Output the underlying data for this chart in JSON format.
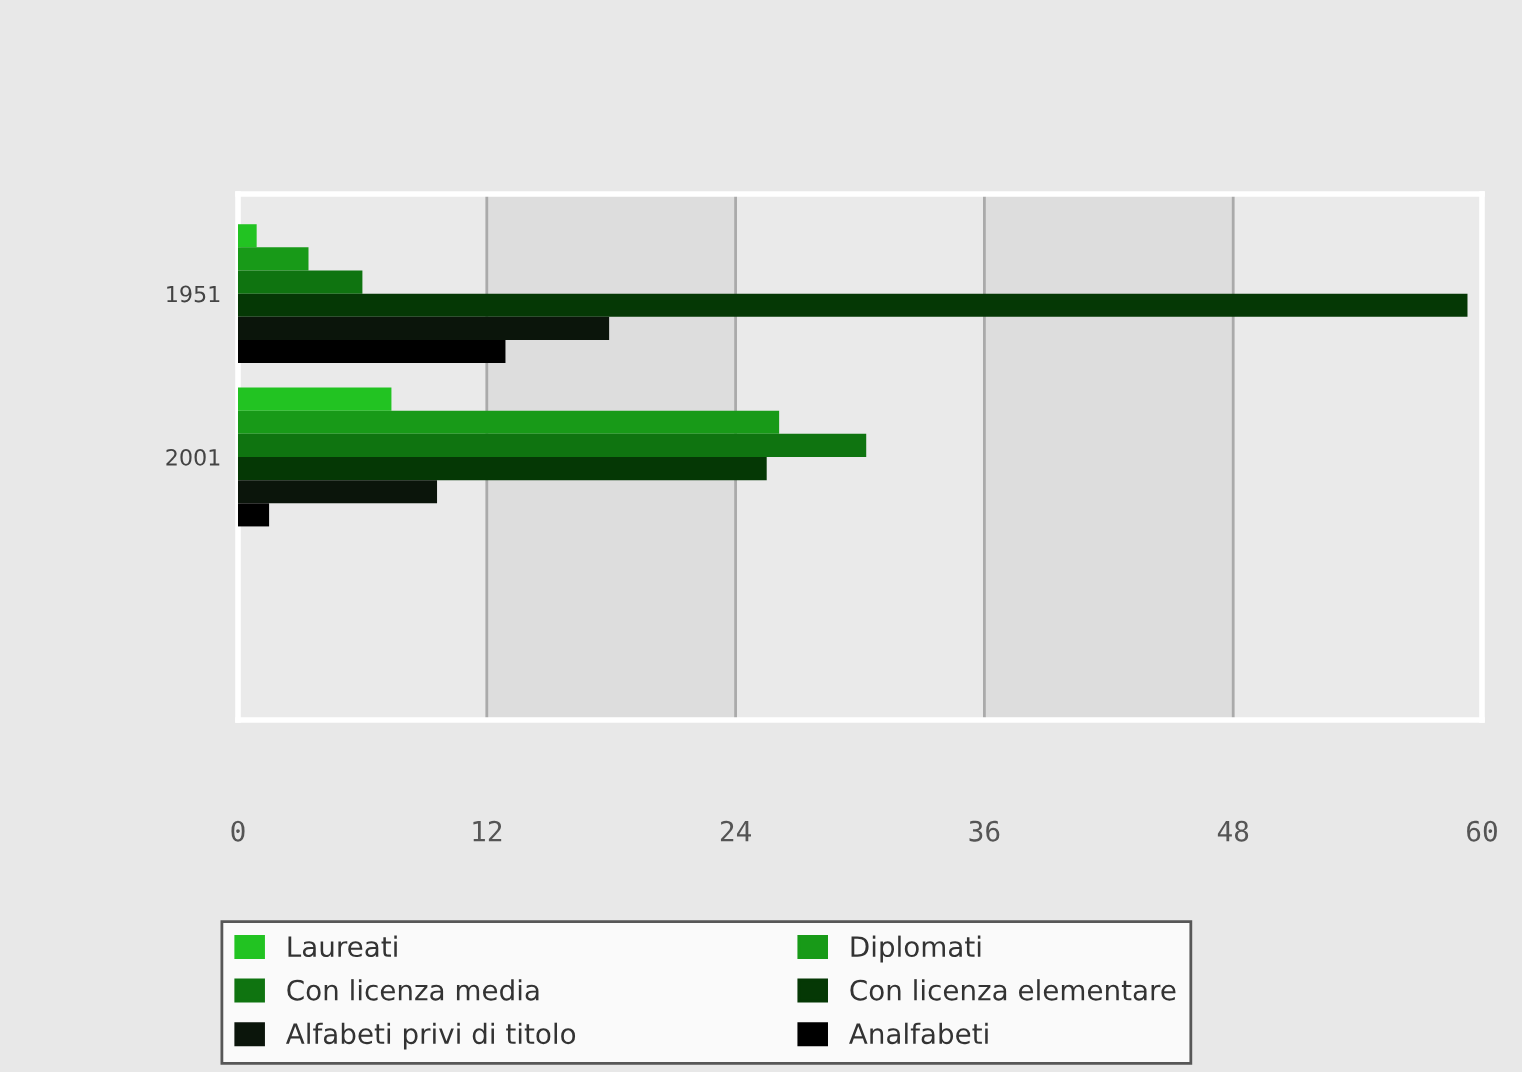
{
  "chart_data": {
    "type": "bar",
    "orientation": "horizontal",
    "categories": [
      "1951",
      "2001",
      null
    ],
    "series": [
      {
        "name": "Laureati",
        "color": "#22c322",
        "values": [
          0.9,
          7.4,
          null
        ]
      },
      {
        "name": "Diplomati",
        "color": "#189a18",
        "values": [
          3.4,
          26.1,
          null
        ]
      },
      {
        "name": "Con licenza media",
        "color": "#0f7410",
        "values": [
          6.0,
          30.3,
          null
        ]
      },
      {
        "name": "Con licenza elementare",
        "color": "#053805",
        "values": [
          59.3,
          25.5,
          null
        ]
      },
      {
        "name": "Alfabeti privi di titolo",
        "color": "#0b150b",
        "values": [
          17.9,
          9.6,
          null
        ]
      },
      {
        "name": "Analfabeti",
        "color": "#000000",
        "values": [
          12.9,
          1.5,
          null
        ]
      }
    ],
    "xlim": [
      0,
      60
    ],
    "xticks": [
      0,
      12,
      24,
      36,
      48,
      60
    ],
    "grid": "x",
    "bands": [
      {
        "axis": "x",
        "from": 12,
        "to": 24,
        "color": "#dddddd"
      },
      {
        "axis": "x",
        "from": 36,
        "to": 48,
        "color": "#dddddd"
      }
    ],
    "legend": "bottom"
  }
}
